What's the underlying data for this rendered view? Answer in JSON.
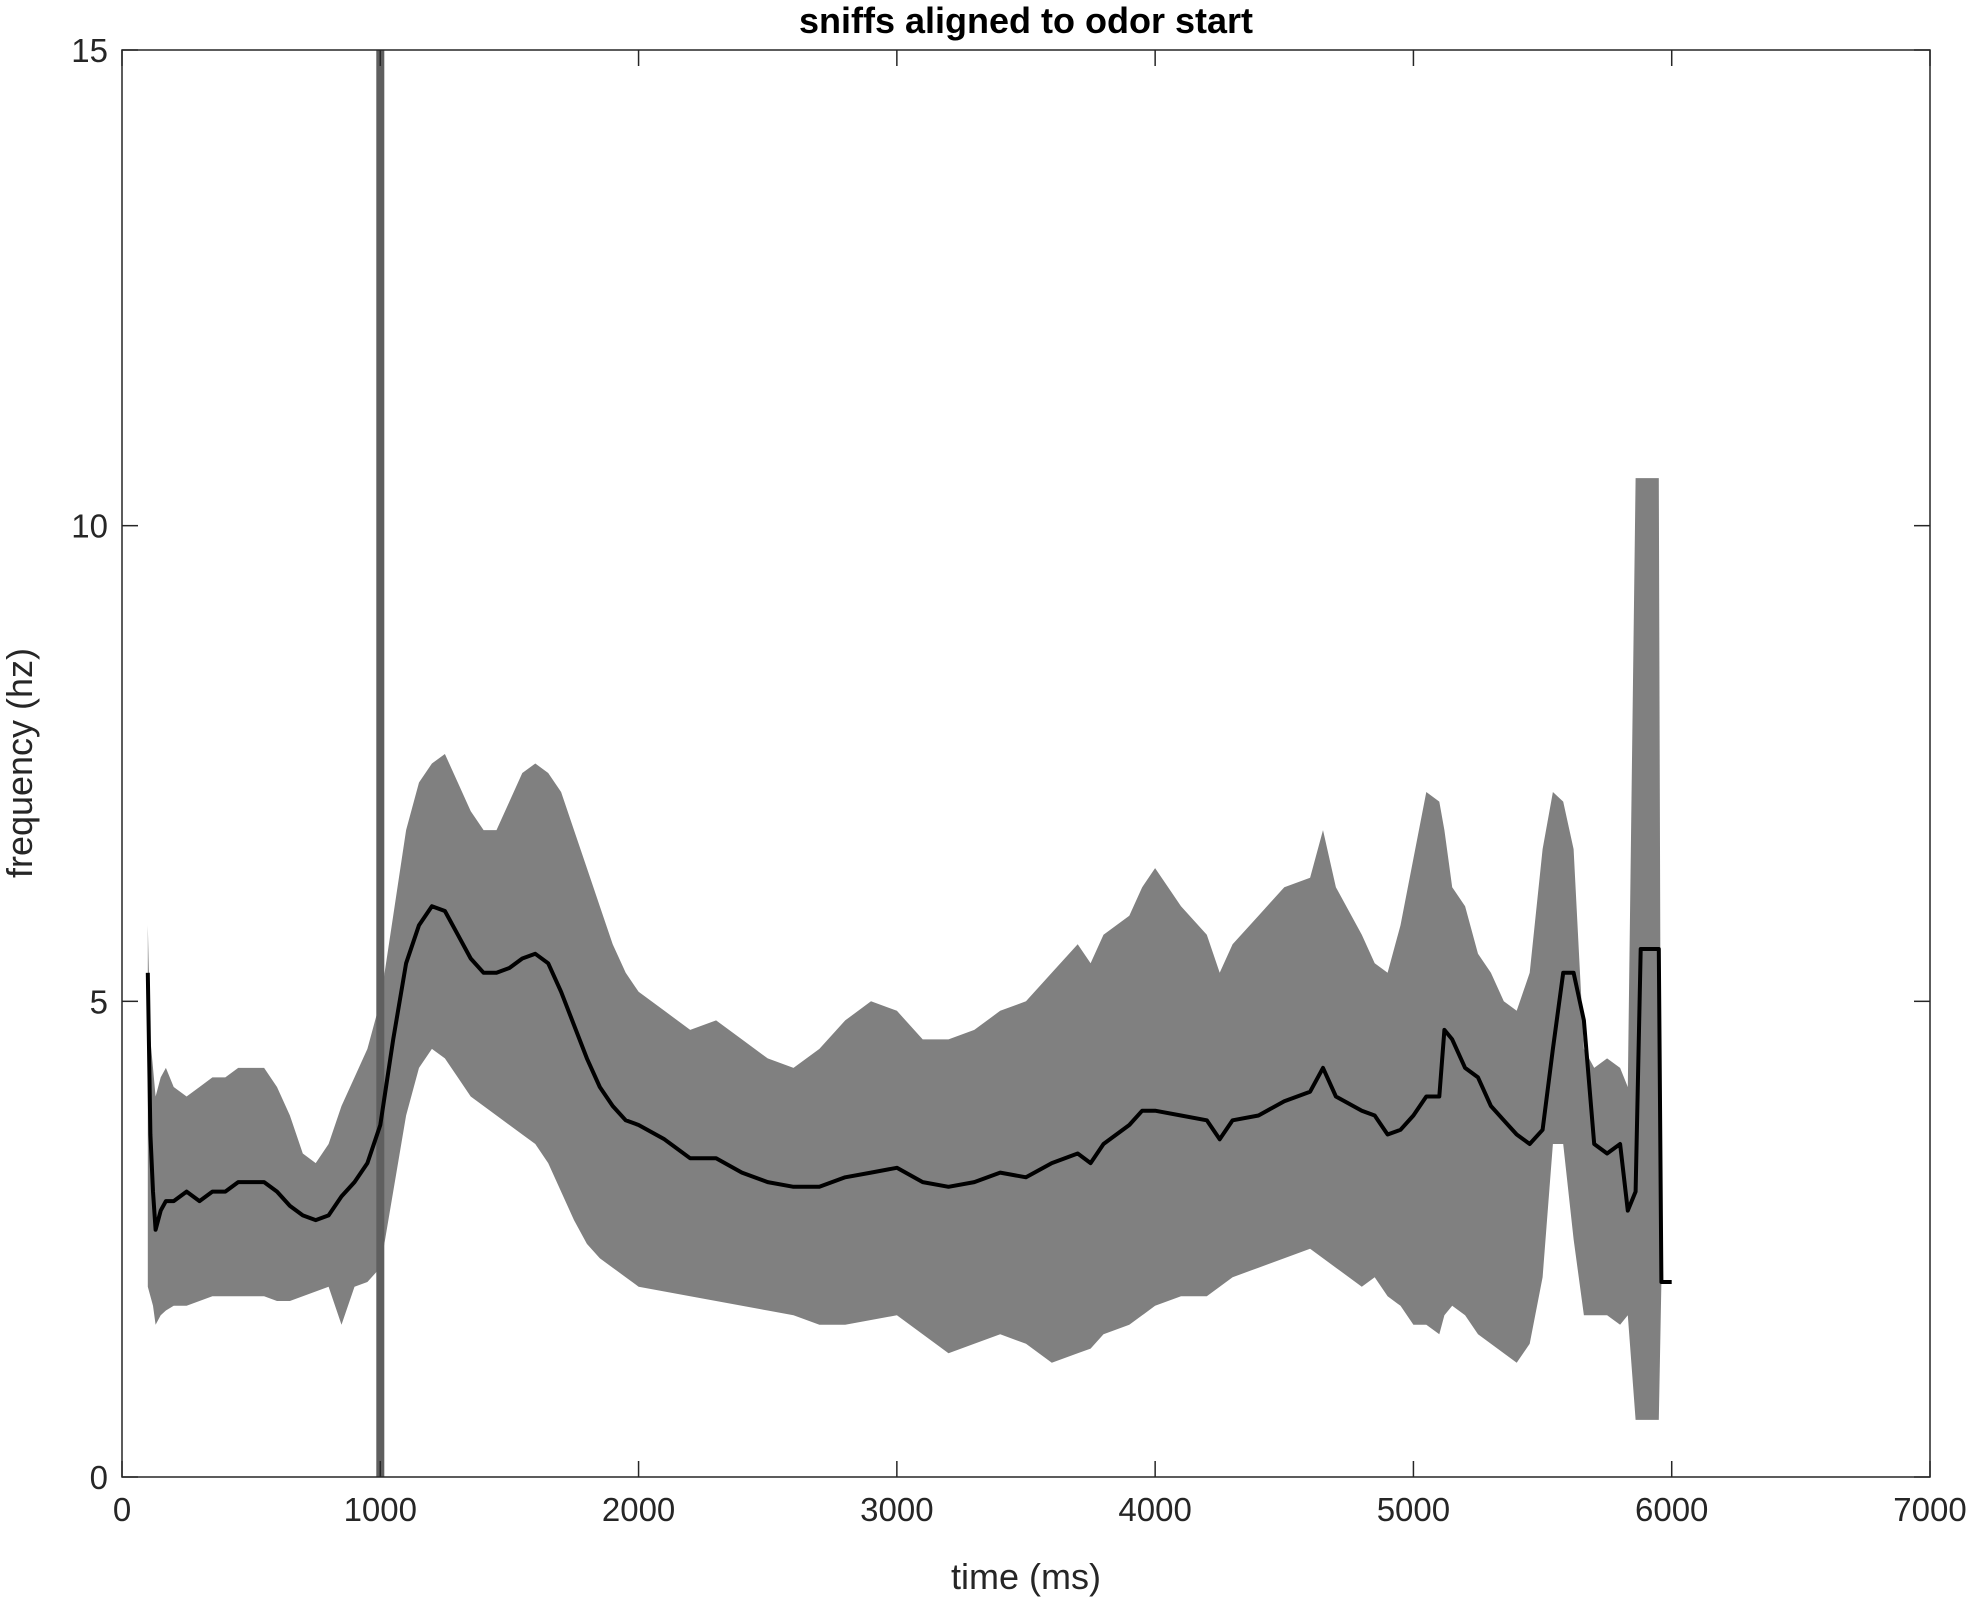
{
  "chart_data": {
    "type": "line",
    "title": "sniffs aligned to odor start",
    "xlabel": "time (ms)",
    "ylabel": "frequency (hz)",
    "xlim": [
      0,
      7000
    ],
    "ylim": [
      0,
      15
    ],
    "xticks": [
      "0",
      "1000",
      "2000",
      "3000",
      "4000",
      "5000",
      "6000",
      "7000"
    ],
    "yticks": [
      "0",
      "5",
      "10",
      "15"
    ],
    "grid": false,
    "legend": "none",
    "colors": {
      "mean": "#000000",
      "band": "#808080",
      "marker": "#5f5f5f",
      "axes": "#262626"
    },
    "vertical_marker": {
      "x": 1000
    },
    "mean_series": {
      "x": [
        100,
        110,
        120,
        130,
        150,
        170,
        200,
        250,
        300,
        350,
        400,
        450,
        500,
        550,
        600,
        650,
        700,
        750,
        800,
        850,
        900,
        950,
        1000,
        1050,
        1100,
        1150,
        1200,
        1250,
        1300,
        1350,
        1400,
        1450,
        1500,
        1550,
        1600,
        1650,
        1700,
        1750,
        1800,
        1850,
        1900,
        1950,
        2000,
        2100,
        2200,
        2300,
        2400,
        2500,
        2600,
        2700,
        2800,
        2900,
        3000,
        3100,
        3200,
        3300,
        3400,
        3500,
        3600,
        3700,
        3750,
        3800,
        3900,
        3950,
        4000,
        4100,
        4200,
        4250,
        4300,
        4400,
        4500,
        4600,
        4650,
        4700,
        4800,
        4850,
        4900,
        4950,
        5000,
        5050,
        5100,
        5120,
        5150,
        5200,
        5250,
        5300,
        5350,
        5400,
        5450,
        5500,
        5540,
        5580,
        5620,
        5660,
        5700,
        5750,
        5800,
        5830,
        5860,
        5880,
        5900,
        5930,
        5950,
        5960,
        6000
      ],
      "y": [
        5.3,
        3.6,
        3.0,
        2.6,
        2.8,
        2.9,
        2.9,
        3.0,
        2.9,
        3.0,
        3.0,
        3.1,
        3.1,
        3.1,
        3.0,
        2.85,
        2.75,
        2.7,
        2.75,
        2.95,
        3.1,
        3.3,
        3.7,
        4.6,
        5.4,
        5.8,
        6.0,
        5.95,
        5.7,
        5.45,
        5.3,
        5.3,
        5.35,
        5.45,
        5.5,
        5.4,
        5.1,
        4.75,
        4.4,
        4.1,
        3.9,
        3.75,
        3.7,
        3.55,
        3.35,
        3.35,
        3.2,
        3.1,
        3.05,
        3.05,
        3.15,
        3.2,
        3.25,
        3.1,
        3.05,
        3.1,
        3.2,
        3.15,
        3.3,
        3.4,
        3.3,
        3.5,
        3.7,
        3.85,
        3.85,
        3.8,
        3.75,
        3.55,
        3.75,
        3.8,
        3.95,
        4.05,
        4.3,
        4.0,
        3.85,
        3.8,
        3.6,
        3.65,
        3.8,
        4.0,
        4.0,
        4.7,
        4.6,
        4.3,
        4.2,
        3.9,
        3.75,
        3.6,
        3.5,
        3.65,
        4.5,
        5.3,
        5.3,
        4.8,
        3.5,
        3.4,
        3.5,
        2.8,
        3.0,
        5.55,
        5.55,
        5.55,
        5.55,
        2.05,
        2.05
      ]
    },
    "band_series": {
      "x": [
        100,
        110,
        120,
        130,
        150,
        170,
        200,
        250,
        300,
        350,
        400,
        450,
        500,
        550,
        600,
        650,
        700,
        750,
        800,
        850,
        900,
        950,
        1000,
        1050,
        1100,
        1150,
        1200,
        1250,
        1300,
        1350,
        1400,
        1450,
        1500,
        1550,
        1600,
        1650,
        1700,
        1750,
        1800,
        1850,
        1900,
        1950,
        2000,
        2100,
        2200,
        2300,
        2400,
        2500,
        2600,
        2700,
        2800,
        2900,
        3000,
        3100,
        3200,
        3300,
        3400,
        3500,
        3600,
        3700,
        3750,
        3800,
        3900,
        3950,
        4000,
        4100,
        4200,
        4250,
        4300,
        4400,
        4500,
        4600,
        4650,
        4700,
        4800,
        4850,
        4900,
        4950,
        5000,
        5050,
        5100,
        5120,
        5150,
        5200,
        5250,
        5300,
        5350,
        5400,
        5450,
        5500,
        5540,
        5580,
        5620,
        5660,
        5700,
        5750,
        5800,
        5830,
        5860,
        5880,
        5900,
        5930,
        5950,
        5960,
        6000
      ],
      "upper": [
        5.8,
        4.6,
        4.3,
        4.0,
        4.2,
        4.3,
        4.1,
        4.0,
        4.1,
        4.2,
        4.2,
        4.3,
        4.3,
        4.3,
        4.1,
        3.8,
        3.4,
        3.3,
        3.5,
        3.9,
        4.2,
        4.5,
        5.0,
        5.9,
        6.8,
        7.3,
        7.5,
        7.6,
        7.3,
        7.0,
        6.8,
        6.8,
        7.1,
        7.4,
        7.5,
        7.4,
        7.2,
        6.8,
        6.4,
        6.0,
        5.6,
        5.3,
        5.1,
        4.9,
        4.7,
        4.8,
        4.6,
        4.4,
        4.3,
        4.5,
        4.8,
        5.0,
        4.9,
        4.6,
        4.6,
        4.7,
        4.9,
        5.0,
        5.3,
        5.6,
        5.4,
        5.7,
        5.9,
        6.2,
        6.4,
        6.0,
        5.7,
        5.3,
        5.6,
        5.9,
        6.2,
        6.3,
        6.8,
        6.2,
        5.7,
        5.4,
        5.3,
        5.8,
        6.5,
        7.2,
        7.1,
        6.8,
        6.2,
        6.0,
        5.5,
        5.3,
        5.0,
        4.9,
        5.3,
        6.6,
        7.2,
        7.1,
        6.6,
        4.5,
        4.3,
        4.4,
        4.3,
        4.1,
        10.5,
        10.5,
        10.5,
        10.5,
        10.5,
        2.05,
        2.05
      ],
      "lower": [
        2.0,
        1.9,
        1.8,
        1.6,
        1.7,
        1.75,
        1.8,
        1.8,
        1.85,
        1.9,
        1.9,
        1.9,
        1.9,
        1.9,
        1.85,
        1.85,
        1.9,
        1.95,
        2.0,
        1.6,
        2.0,
        2.05,
        2.2,
        3.0,
        3.8,
        4.3,
        4.5,
        4.4,
        4.2,
        4.0,
        3.9,
        3.8,
        3.7,
        3.6,
        3.5,
        3.3,
        3.0,
        2.7,
        2.45,
        2.3,
        2.2,
        2.1,
        2.0,
        1.95,
        1.9,
        1.85,
        1.8,
        1.75,
        1.7,
        1.6,
        1.6,
        1.65,
        1.7,
        1.5,
        1.3,
        1.4,
        1.5,
        1.4,
        1.2,
        1.3,
        1.35,
        1.5,
        1.6,
        1.7,
        1.8,
        1.9,
        1.9,
        2.0,
        2.1,
        2.2,
        2.3,
        2.4,
        2.3,
        2.2,
        2.0,
        2.1,
        1.9,
        1.8,
        1.6,
        1.6,
        1.5,
        1.7,
        1.8,
        1.7,
        1.5,
        1.4,
        1.3,
        1.2,
        1.4,
        2.1,
        3.5,
        3.5,
        2.5,
        1.7,
        1.7,
        1.7,
        1.6,
        1.7,
        0.6,
        0.6,
        0.6,
        0.6,
        0.6,
        2.05,
        2.05
      ]
    }
  }
}
